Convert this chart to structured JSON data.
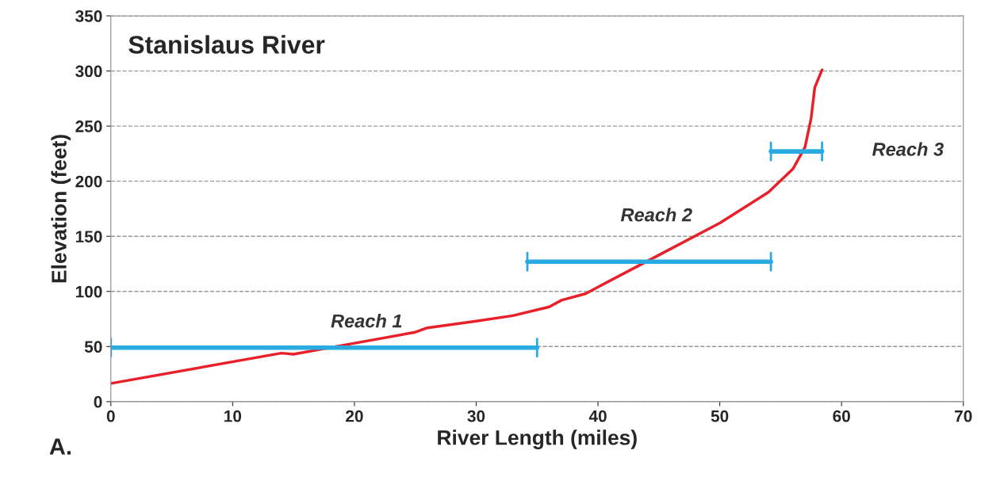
{
  "chart_data": {
    "type": "line",
    "title": "Stanislaus River",
    "xlabel": "River Length (miles)",
    "ylabel": "Elevation (feet)",
    "xlim": [
      0,
      70
    ],
    "xticks": [
      0,
      10,
      20,
      30,
      40,
      50,
      60,
      70
    ],
    "ylim": [
      0,
      350
    ],
    "yticks": [
      0,
      50,
      100,
      150,
      200,
      250,
      300,
      350
    ],
    "grid": "y",
    "series": [
      {
        "color": "#e8202a",
        "x": [
          0,
          14,
          15,
          20,
          25,
          26,
          30,
          33,
          36,
          37,
          39,
          40,
          45,
          50,
          54,
          56,
          57,
          57.5,
          57.8,
          58.4
        ],
        "values": [
          16.5,
          44,
          43,
          53,
          63,
          67,
          73,
          78,
          86,
          92,
          98,
          104,
          133,
          162,
          190,
          211,
          231,
          257,
          285,
          301
        ]
      },
      {
        "color": "#29abe2",
        "x": [
          0,
          35
        ],
        "values": [
          49,
          49
        ]
      },
      {
        "color": "#29abe2",
        "x": [
          34.2,
          54.2
        ],
        "values": [
          127,
          127
        ]
      },
      {
        "color": "#29abe2",
        "x": [
          54.2,
          58.4
        ],
        "values": [
          227,
          227
        ]
      }
    ],
    "annotations": [
      "Reach 1",
      "Reach 2",
      "Reach 3",
      "A."
    ]
  }
}
